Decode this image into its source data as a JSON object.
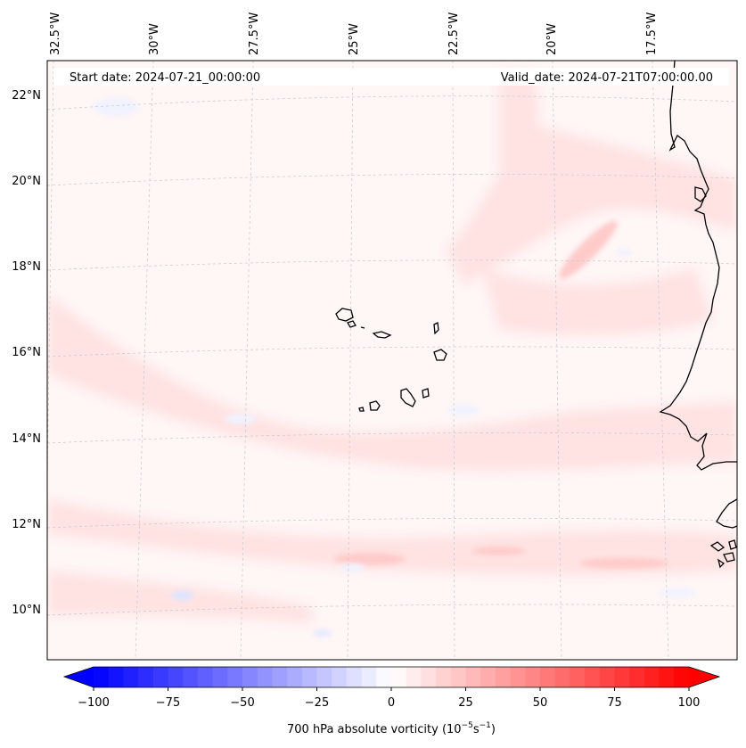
{
  "map": {
    "start_label": "Start date: 2024-07-21_00:00:00",
    "valid_label": "Valid_date: 2024-07-21T07:00:00.00",
    "lon_labels": [
      "32.5°W",
      "30°W",
      "27.5°W",
      "25°W",
      "22.5°W",
      "20°W",
      "17.5°W"
    ],
    "lat_labels": [
      "22°N",
      "20°N",
      "18°N",
      "16°N",
      "14°N",
      "12°N",
      "10°N"
    ]
  },
  "colorbar": {
    "label_text": "700 hPa absolute vorticity (10",
    "label_exp1": "−5",
    "label_mid": "s",
    "label_exp2": "−1",
    "label_close": ")",
    "ticks": [
      "−100",
      "−75",
      "−50",
      "−25",
      "0",
      "25",
      "50",
      "75",
      "100"
    ],
    "min_color": "#0000ff",
    "mid_color": "#ffffff",
    "max_color": "#ff0000"
  }
}
